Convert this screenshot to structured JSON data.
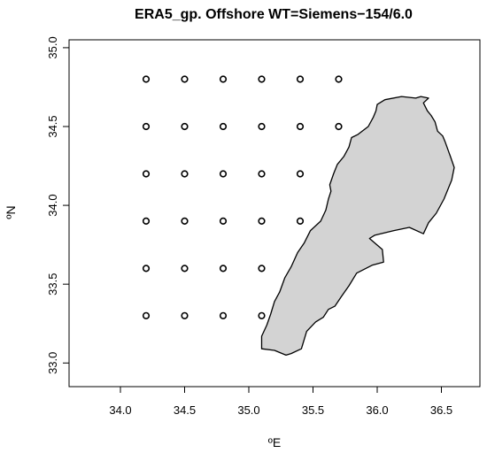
{
  "chart_data": {
    "type": "scatter",
    "title": "ERA5_gp. Offshore WT=Siemens−154/6.0",
    "xlabel": "ºE",
    "ylabel": "ºN",
    "xlim": [
      33.6,
      36.8
    ],
    "ylim": [
      32.85,
      35.05
    ],
    "xticks": [
      "34.0",
      "34.5",
      "35.0",
      "35.5",
      "36.0",
      "36.5"
    ],
    "yticks": [
      "33.0",
      "33.5",
      "34.0",
      "34.5",
      "35.0"
    ],
    "grid": false,
    "legend": "none",
    "series": [
      {
        "marker": "open-circle",
        "points": [
          [
            34.2,
            34.8
          ],
          [
            34.5,
            34.8
          ],
          [
            34.8,
            34.8
          ],
          [
            35.1,
            34.8
          ],
          [
            35.4,
            34.8
          ],
          [
            35.7,
            34.8
          ],
          [
            34.2,
            34.5
          ],
          [
            34.5,
            34.5
          ],
          [
            34.8,
            34.5
          ],
          [
            35.1,
            34.5
          ],
          [
            35.4,
            34.5
          ],
          [
            35.7,
            34.5
          ],
          [
            34.2,
            34.2
          ],
          [
            34.5,
            34.2
          ],
          [
            34.8,
            34.2
          ],
          [
            35.1,
            34.2
          ],
          [
            35.4,
            34.2
          ],
          [
            34.2,
            33.9
          ],
          [
            34.5,
            33.9
          ],
          [
            34.8,
            33.9
          ],
          [
            35.1,
            33.9
          ],
          [
            35.4,
            33.9
          ],
          [
            34.2,
            33.6
          ],
          [
            34.5,
            33.6
          ],
          [
            34.8,
            33.6
          ],
          [
            35.1,
            33.6
          ],
          [
            34.2,
            33.3
          ],
          [
            34.5,
            33.3
          ],
          [
            34.8,
            33.3
          ],
          [
            35.1,
            33.3
          ]
        ]
      }
    ],
    "land_polygon": {
      "fill": "#d3d3d3",
      "stroke": "#000000",
      "coords": [
        [
          35.1,
          33.09
        ],
        [
          35.2,
          33.08
        ],
        [
          35.29,
          33.05
        ],
        [
          35.33,
          33.06
        ],
        [
          35.41,
          33.09
        ],
        [
          35.45,
          33.2
        ],
        [
          35.52,
          33.26
        ],
        [
          35.58,
          33.29
        ],
        [
          35.62,
          33.34
        ],
        [
          35.67,
          33.36
        ],
        [
          35.72,
          33.42
        ],
        [
          35.78,
          33.49
        ],
        [
          35.84,
          33.57
        ],
        [
          35.96,
          33.62
        ],
        [
          36.05,
          33.64
        ],
        [
          36.04,
          33.72
        ],
        [
          35.94,
          33.79
        ],
        [
          35.98,
          33.81
        ],
        [
          36.13,
          33.84
        ],
        [
          36.25,
          33.86
        ],
        [
          36.36,
          33.82
        ],
        [
          36.4,
          33.89
        ],
        [
          36.46,
          33.95
        ],
        [
          36.52,
          34.04
        ],
        [
          36.58,
          34.16
        ],
        [
          36.6,
          34.24
        ],
        [
          36.57,
          34.31
        ],
        [
          36.53,
          34.4
        ],
        [
          36.51,
          34.44
        ],
        [
          36.47,
          34.47
        ],
        [
          36.45,
          34.53
        ],
        [
          36.42,
          34.57
        ],
        [
          36.39,
          34.6
        ],
        [
          36.36,
          34.65
        ],
        [
          36.4,
          34.68
        ],
        [
          36.34,
          34.69
        ],
        [
          36.3,
          34.68
        ],
        [
          36.19,
          34.69
        ],
        [
          36.06,
          34.67
        ],
        [
          36.0,
          34.64
        ],
        [
          35.99,
          34.6
        ],
        [
          35.97,
          34.56
        ],
        [
          35.93,
          34.5
        ],
        [
          35.85,
          34.45
        ],
        [
          35.8,
          34.43
        ],
        [
          35.78,
          34.37
        ],
        [
          35.74,
          34.31
        ],
        [
          35.69,
          34.26
        ],
        [
          35.66,
          34.2
        ],
        [
          35.63,
          34.13
        ],
        [
          35.64,
          34.09
        ],
        [
          35.62,
          34.04
        ],
        [
          35.6,
          33.97
        ],
        [
          35.56,
          33.9
        ],
        [
          35.48,
          33.84
        ],
        [
          35.43,
          33.76
        ],
        [
          35.38,
          33.7
        ],
        [
          35.33,
          33.61
        ],
        [
          35.28,
          33.54
        ],
        [
          35.24,
          33.45
        ],
        [
          35.2,
          33.39
        ],
        [
          35.17,
          33.31
        ],
        [
          35.14,
          33.24
        ],
        [
          35.1,
          33.17
        ]
      ]
    }
  }
}
